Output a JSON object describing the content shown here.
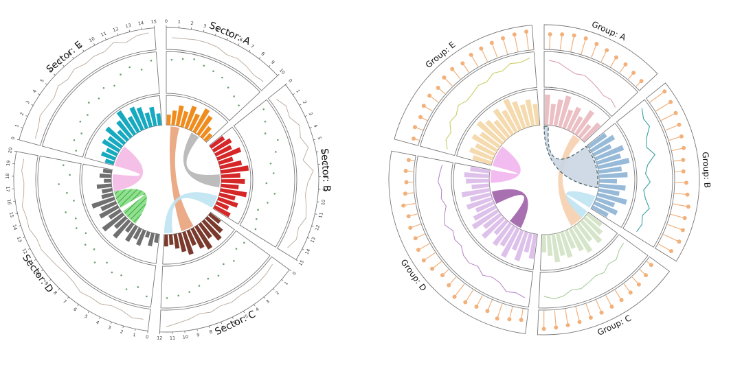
{
  "chart_data": [
    {
      "type": "circos",
      "style": "sans",
      "sector_labels": [
        "Sector: A",
        "Sector: B",
        "Sector: C",
        "Sector: D",
        "Sector: E"
      ],
      "sector_sizes": [
        10,
        15,
        12,
        20,
        15
      ],
      "colors": {
        "A": "#f08c1e",
        "B": "#d62728",
        "C": "#7a3b2e",
        "D": "#707070",
        "E": "#17a9c0",
        "line": "#b8a89a",
        "scatter": "#6aa06e",
        "link_peach": "#e9a27a",
        "link_grey": "#b5b5b5",
        "link_blue": "#bfe3f2",
        "link_pink": "#f4b9e6",
        "link_green": "#8fe08f"
      },
      "line_values": {
        "A": [
          0.55,
          0.55,
          0.6,
          0.6,
          0.55,
          0.35,
          0.45,
          0.35,
          0.2,
          0.3
        ],
        "B": [
          0.2,
          0.45,
          0.3,
          0.65,
          0.45,
          0.75,
          0.3,
          0.85,
          0.5,
          0.4,
          0.55,
          0.7,
          0.45,
          0.6,
          0.35
        ],
        "C": [
          0.15,
          0.25,
          0.3,
          0.3,
          0.25,
          0.35,
          0.25,
          0.4,
          0.3,
          0.5,
          0.65,
          0.85
        ],
        "D": [
          0.5,
          0.55,
          0.3,
          0.25,
          0.45,
          0.4,
          0.5,
          0.3,
          0.25,
          0.35,
          0.45,
          0.6,
          0.55,
          0.75,
          0.7,
          0.8,
          0.6,
          0.55,
          0.7,
          0.65
        ],
        "E": [
          0.25,
          0.3,
          0.5,
          0.4,
          0.35,
          0.6,
          0.45,
          0.65,
          0.5,
          0.6,
          0.55,
          0.85,
          0.6,
          0.85,
          0.9
        ]
      },
      "scatter_values": {
        "A": [
          0.85,
          0.9,
          0.95,
          0.85,
          0.8,
          0.75,
          0.6,
          0.5,
          0.4
        ],
        "B": [
          0.85,
          0.7,
          0.55,
          0.8,
          0.65,
          0.45,
          0.5,
          0.3,
          0.55,
          0.4,
          0.2,
          0.25,
          0.35
        ],
        "C": [
          0.3,
          0.25,
          0.45,
          0.35,
          0.55,
          0.5,
          0.6,
          0.7,
          0.75,
          0.8
        ],
        "D": [
          0.8,
          0.6,
          0.75,
          0.45,
          0.5,
          0.35,
          0.55,
          0.3,
          0.4,
          0.2,
          0.35,
          0.25,
          0.45,
          0.15,
          0.3,
          0.5,
          0.2,
          0.4
        ],
        "E": [
          0.15,
          0.3,
          0.2,
          0.4,
          0.35,
          0.55,
          0.45,
          0.6,
          0.5,
          0.7,
          0.8,
          0.65,
          0.85
        ]
      },
      "bar_values": {
        "A": [
          0.35,
          0.5,
          0.7,
          0.55,
          0.8,
          0.6,
          0.9,
          0.75,
          0.45,
          0.3
        ],
        "B": [
          0.55,
          0.7,
          0.6,
          0.85,
          0.5,
          0.75,
          0.95,
          0.65,
          0.8,
          0.6,
          0.9,
          0.55,
          0.7,
          0.45,
          0.6
        ],
        "C": [
          0.45,
          0.7,
          0.85,
          0.6,
          0.9,
          0.75,
          0.55,
          0.8,
          0.65,
          0.5,
          0.35,
          0.4
        ],
        "D": [
          0.3,
          0.45,
          0.2,
          0.55,
          0.4,
          0.6,
          0.35,
          0.75,
          0.5,
          0.85,
          0.45,
          0.7,
          0.55,
          0.8,
          0.4,
          0.35,
          0.5,
          0.25,
          0.4,
          0.3
        ],
        "E": [
          0.3,
          0.5,
          0.4,
          0.65,
          0.55,
          0.8,
          0.45,
          0.7,
          0.95,
          0.6,
          0.85,
          0.75,
          0.5,
          0.65,
          0.4
        ]
      },
      "links": [
        {
          "from": [
            "A",
            1,
            3
          ],
          "to": [
            "C",
            5,
            8
          ],
          "color": "link_peach",
          "hatch": false
        },
        {
          "from": [
            "A",
            6,
            8
          ],
          "to": [
            "B",
            7,
            10
          ],
          "color": "link_grey",
          "hatch": false
        },
        {
          "from": [
            "B",
            12,
            15
          ],
          "to": [
            "C",
            10,
            12
          ],
          "color": "link_blue",
          "hatch": false
        },
        {
          "from": [
            "D",
            15,
            19
          ],
          "to": [
            "E",
            0,
            5
          ],
          "color": "link_pink",
          "hatch": false
        },
        {
          "from": [
            "D",
            6,
            10
          ],
          "to": [
            "D",
            11,
            15
          ],
          "color": "link_green",
          "hatch": true
        }
      ]
    },
    {
      "type": "circos",
      "style": "serif",
      "sector_labels": [
        "Group: A",
        "Group: B",
        "Group: C",
        "Group: D",
        "Group: E"
      ],
      "sector_sizes": [
        10,
        15,
        12,
        20,
        15
      ],
      "colors": {
        "A": "#e8b4b8",
        "B": "#86aed2",
        "C": "#cfe0c0",
        "D": "#d7b6e6",
        "E": "#f3d3a0",
        "lollipop": "#f2b07a",
        "line_A": "#d8a0b0",
        "line_B": "#3a9ea0",
        "line_C": "#a8cc9a",
        "line_D": "#b88ac8",
        "line_E": "#c8cc60",
        "link_peach": "#f7cfae",
        "link_blue": "#bfe3f2",
        "link_pink": "#f2b5ee",
        "link_purple": "#a060a8",
        "link_dashed": "#cad6e4"
      },
      "lollipop_values": {
        "A": [
          0.7,
          0.75,
          0.8,
          0.8,
          0.7,
          0.6,
          0.5,
          0.45,
          0.35,
          0.3
        ],
        "B": [
          0.9,
          0.85,
          0.8,
          0.7,
          0.6,
          0.55,
          0.4,
          0.35,
          0.5,
          0.6,
          0.75,
          0.7,
          0.8,
          0.85,
          0.7
        ],
        "C": [
          0.2,
          0.35,
          0.45,
          0.5,
          0.55,
          0.6,
          0.65,
          0.7,
          0.75,
          0.8,
          0.85,
          0.9
        ],
        "D": [
          0.5,
          0.6,
          0.75,
          0.55,
          0.6,
          0.7,
          0.8,
          0.5,
          0.35,
          0.55,
          0.65,
          0.6,
          0.45,
          0.5,
          0.4,
          0.55,
          0.35,
          0.25,
          0.3,
          0.2
        ],
        "E": [
          0.2,
          0.35,
          0.3,
          0.45,
          0.5,
          0.4,
          0.55,
          0.6,
          0.5,
          0.65,
          0.7,
          0.75,
          0.8,
          0.85,
          0.9
        ]
      },
      "line_values": {
        "A": [
          0.8,
          0.75,
          0.6,
          0.5,
          0.55,
          0.45,
          0.35,
          0.25,
          0.3,
          0.2
        ],
        "B": [
          0.85,
          0.7,
          0.75,
          0.5,
          0.4,
          0.6,
          0.3,
          0.2,
          0.35,
          0.15,
          0.25,
          0.45,
          0.3,
          0.4,
          0.35
        ],
        "C": [
          0.2,
          0.25,
          0.4,
          0.35,
          0.5,
          0.45,
          0.55,
          0.65,
          0.6,
          0.75,
          0.8,
          0.7
        ],
        "D": [
          0.8,
          0.7,
          0.75,
          0.55,
          0.5,
          0.6,
          0.45,
          0.55,
          0.5,
          0.35,
          0.4,
          0.3,
          0.45,
          0.35,
          0.2,
          0.3,
          0.25,
          0.35,
          0.3,
          0.25
        ],
        "E": [
          0.2,
          0.35,
          0.3,
          0.5,
          0.45,
          0.6,
          0.5,
          0.55,
          0.65,
          0.6,
          0.75,
          0.7,
          0.85,
          0.8,
          0.9
        ]
      },
      "bar_values": {
        "A": [
          0.85,
          0.6,
          0.75,
          0.9,
          0.55,
          0.7,
          0.5,
          0.8,
          0.45,
          0.65
        ],
        "B": [
          0.6,
          0.75,
          0.55,
          0.85,
          0.7,
          0.9,
          0.65,
          0.8,
          0.5,
          0.75,
          0.6,
          0.85,
          0.55,
          0.7,
          0.5
        ],
        "C": [
          0.5,
          0.65,
          0.8,
          0.6,
          0.85,
          0.7,
          0.55,
          0.75,
          0.65,
          0.8,
          0.6,
          0.5
        ],
        "D": [
          0.7,
          0.55,
          0.85,
          0.6,
          0.9,
          0.65,
          0.75,
          0.5,
          0.8,
          0.6,
          0.85,
          0.7,
          0.55,
          0.75,
          0.6,
          0.8,
          0.5,
          0.65,
          0.7,
          0.55
        ],
        "E": [
          0.55,
          0.7,
          0.6,
          0.8,
          0.65,
          0.9,
          0.75,
          0.6,
          0.85,
          0.7,
          0.95,
          0.8,
          0.65,
          0.75,
          0.6
        ]
      },
      "links": [
        {
          "from": [
            "A",
            7,
            9
          ],
          "to": [
            "C",
            2,
            5
          ],
          "color": "link_peach",
          "dashed": false
        },
        {
          "from": [
            "B",
            12,
            15
          ],
          "to": [
            "C",
            0,
            2
          ],
          "color": "link_blue",
          "dashed": false
        },
        {
          "from": [
            "D",
            17,
            20
          ],
          "to": [
            "E",
            0,
            5
          ],
          "color": "link_pink",
          "dashed": false
        },
        {
          "from": [
            "D",
            4,
            7
          ],
          "to": [
            "D",
            12,
            15
          ],
          "color": "link_purple",
          "dashed": false
        },
        {
          "from": [
            "A",
            0,
            1
          ],
          "to": [
            "B",
            0,
            10
          ],
          "color": "link_dashed",
          "dashed": true
        }
      ]
    }
  ]
}
